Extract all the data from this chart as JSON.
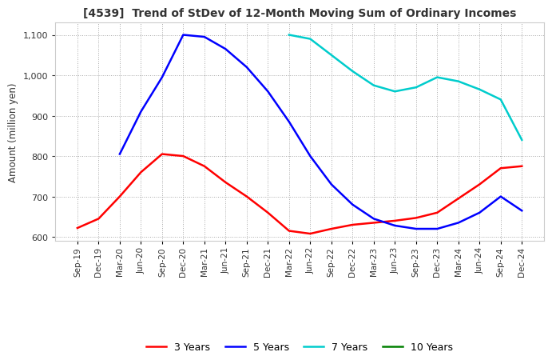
{
  "title": "[4539]  Trend of StDev of 12-Month Moving Sum of Ordinary Incomes",
  "ylabel": "Amount (million yen)",
  "ylim": [
    590,
    1130
  ],
  "yticks": [
    600,
    700,
    800,
    900,
    1000,
    1100
  ],
  "background_color": "#ffffff",
  "x_labels": [
    "Sep-19",
    "Dec-19",
    "Mar-20",
    "Jun-20",
    "Sep-20",
    "Dec-20",
    "Mar-21",
    "Jun-21",
    "Sep-21",
    "Dec-21",
    "Mar-22",
    "Jun-22",
    "Sep-22",
    "Dec-22",
    "Mar-23",
    "Jun-23",
    "Sep-23",
    "Dec-23",
    "Mar-24",
    "Jun-24",
    "Sep-24",
    "Dec-24"
  ],
  "series": [
    {
      "name": "3 Years",
      "color": "#ff0000",
      "data": [
        622,
        645,
        700,
        760,
        805,
        800,
        775,
        735,
        700,
        660,
        615,
        608,
        620,
        630,
        635,
        640,
        647,
        660,
        695,
        730,
        770,
        775
      ]
    },
    {
      "name": "5 Years",
      "color": "#0000ff",
      "data": [
        null,
        null,
        805,
        910,
        995,
        1100,
        1095,
        1065,
        1020,
        960,
        885,
        800,
        730,
        680,
        645,
        628,
        620,
        620,
        635,
        660,
        700,
        665
      ]
    },
    {
      "name": "7 Years",
      "color": "#00cccc",
      "data": [
        null,
        null,
        null,
        null,
        null,
        null,
        null,
        null,
        null,
        null,
        1100,
        1090,
        1050,
        1010,
        975,
        960,
        970,
        995,
        985,
        965,
        940,
        840
      ]
    },
    {
      "name": "10 Years",
      "color": "#008000",
      "data": [
        null,
        null,
        null,
        null,
        null,
        null,
        null,
        null,
        null,
        null,
        null,
        null,
        null,
        null,
        null,
        null,
        null,
        null,
        null,
        null,
        null,
        null
      ]
    }
  ]
}
